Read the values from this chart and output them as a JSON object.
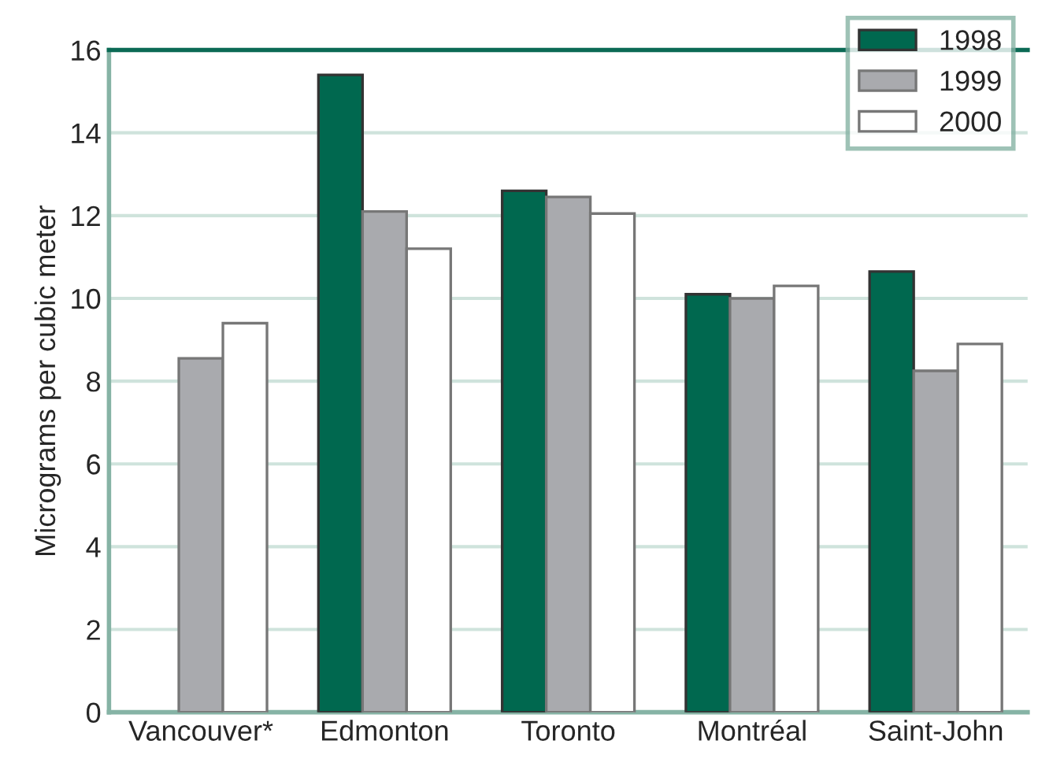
{
  "chart_data": {
    "type": "bar",
    "ylabel": "Micrograms per cubic meter",
    "categories": [
      "Vancouver*",
      "Edmonton",
      "Toronto",
      "Montréal",
      "Saint-John"
    ],
    "series": [
      {
        "name": "1998",
        "color": "#00684f",
        "values": [
          null,
          15.4,
          12.6,
          10.1,
          10.65
        ]
      },
      {
        "name": "1999",
        "color": "#a9aaae",
        "values": [
          8.55,
          12.1,
          12.45,
          10.0,
          8.25
        ]
      },
      {
        "name": "2000",
        "color": "#ffffff",
        "values": [
          9.4,
          11.2,
          12.05,
          10.3,
          8.9
        ]
      }
    ],
    "ylim": [
      0,
      16
    ],
    "yticks": [
      0,
      2,
      4,
      6,
      8,
      10,
      12,
      14,
      16
    ],
    "grid": "y",
    "legend": "top right"
  }
}
